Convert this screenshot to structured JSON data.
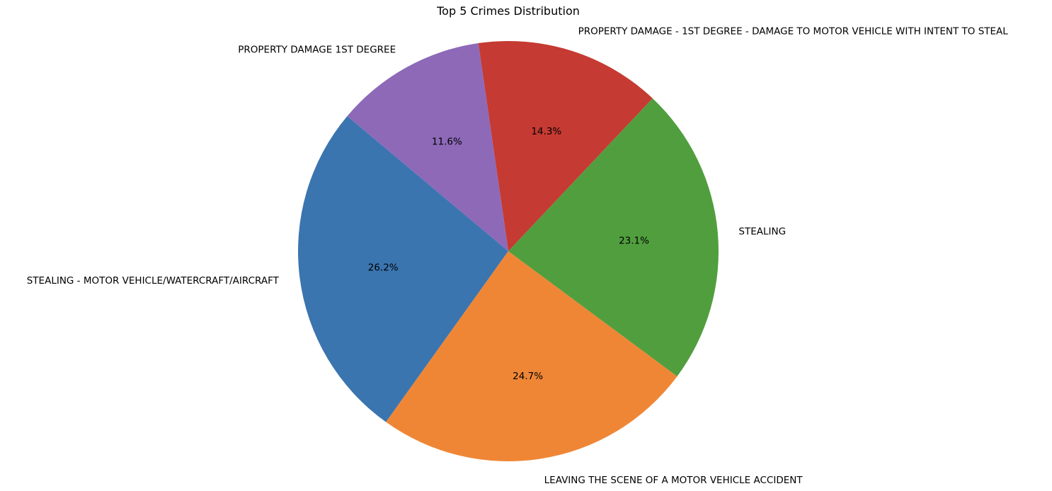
{
  "chart_data": {
    "type": "pie",
    "title": "Top 5 Crimes Distribution",
    "slices": [
      {
        "label": "STEALING - MOTOR VEHICLE/WATERCRAFT/AIRCRAFT",
        "value": 26.2,
        "display": "26.2%",
        "color": "#3a75af"
      },
      {
        "label": "LEAVING THE SCENE OF A MOTOR VEHICLE ACCIDENT",
        "value": 24.7,
        "display": "24.7%",
        "color": "#ef8636"
      },
      {
        "label": "STEALING",
        "value": 23.1,
        "display": "23.1%",
        "color": "#519e3e"
      },
      {
        "label": "PROPERTY DAMAGE - 1ST DEGREE - DAMAGE TO MOTOR VEHICLE WITH INTENT TO STEAL",
        "value": 14.3,
        "display": "14.3%",
        "color": "#c53a32"
      },
      {
        "label": "PROPERTY DAMAGE 1ST DEGREE",
        "value": 11.6,
        "display": "11.6%",
        "color": "#8d69b8"
      }
    ],
    "start_angle_deg": 140,
    "direction": "counterclockwise",
    "label_placement": "outside",
    "percent_placement": "inside"
  }
}
